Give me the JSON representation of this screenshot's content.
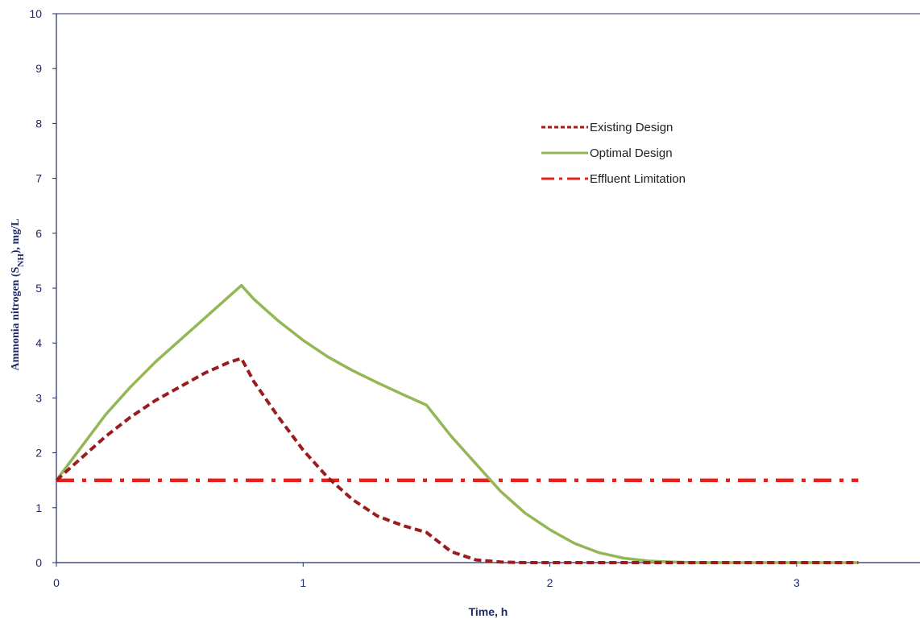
{
  "chart_data": {
    "type": "line",
    "xlabel": "Time, h",
    "ylabel_prefix": "Ammonia nitrogen (S",
    "ylabel_subscript": "NH",
    "ylabel_suffix": "), mg/L",
    "xlim": [
      0,
      3.5
    ],
    "ylim": [
      0,
      10
    ],
    "xticks": [
      0,
      1,
      2,
      3
    ],
    "yticks": [
      0,
      1,
      2,
      3,
      4,
      5,
      6,
      7,
      8,
      9,
      10
    ],
    "grid": false,
    "legend_position": "top-right",
    "series": [
      {
        "name": "Existing Design",
        "color": "#9b1c1c",
        "style": "dashed",
        "x": [
          0,
          0.1,
          0.2,
          0.3,
          0.4,
          0.5,
          0.6,
          0.7,
          0.75,
          0.8,
          0.9,
          1.0,
          1.1,
          1.2,
          1.3,
          1.4,
          1.5,
          1.6,
          1.7,
          1.8,
          1.9,
          2.0,
          2.2,
          2.5,
          3.0,
          3.25
        ],
        "y": [
          1.5,
          1.9,
          2.3,
          2.65,
          2.95,
          3.2,
          3.45,
          3.65,
          3.72,
          3.3,
          2.65,
          2.05,
          1.55,
          1.15,
          0.85,
          0.68,
          0.55,
          0.2,
          0.05,
          0.01,
          0,
          0,
          0,
          0,
          0,
          0
        ]
      },
      {
        "name": "Optimal Design",
        "color": "#94b756",
        "style": "solid",
        "x": [
          0,
          0.1,
          0.2,
          0.3,
          0.4,
          0.5,
          0.6,
          0.7,
          0.75,
          0.8,
          0.9,
          1.0,
          1.1,
          1.2,
          1.3,
          1.4,
          1.5,
          1.6,
          1.7,
          1.8,
          1.9,
          2.0,
          2.1,
          2.2,
          2.3,
          2.4,
          2.5,
          2.6,
          3.0,
          3.25
        ],
        "y": [
          1.5,
          2.1,
          2.7,
          3.2,
          3.65,
          4.05,
          4.45,
          4.85,
          5.05,
          4.8,
          4.4,
          4.05,
          3.75,
          3.5,
          3.28,
          3.07,
          2.87,
          2.3,
          1.8,
          1.3,
          0.9,
          0.6,
          0.35,
          0.18,
          0.08,
          0.03,
          0.01,
          0,
          0,
          0
        ]
      },
      {
        "name": "Effluent Limitation",
        "color": "#e8201b",
        "style": "dashdot",
        "x": [
          0,
          3.25
        ],
        "y": [
          1.5,
          1.5
        ]
      }
    ]
  }
}
